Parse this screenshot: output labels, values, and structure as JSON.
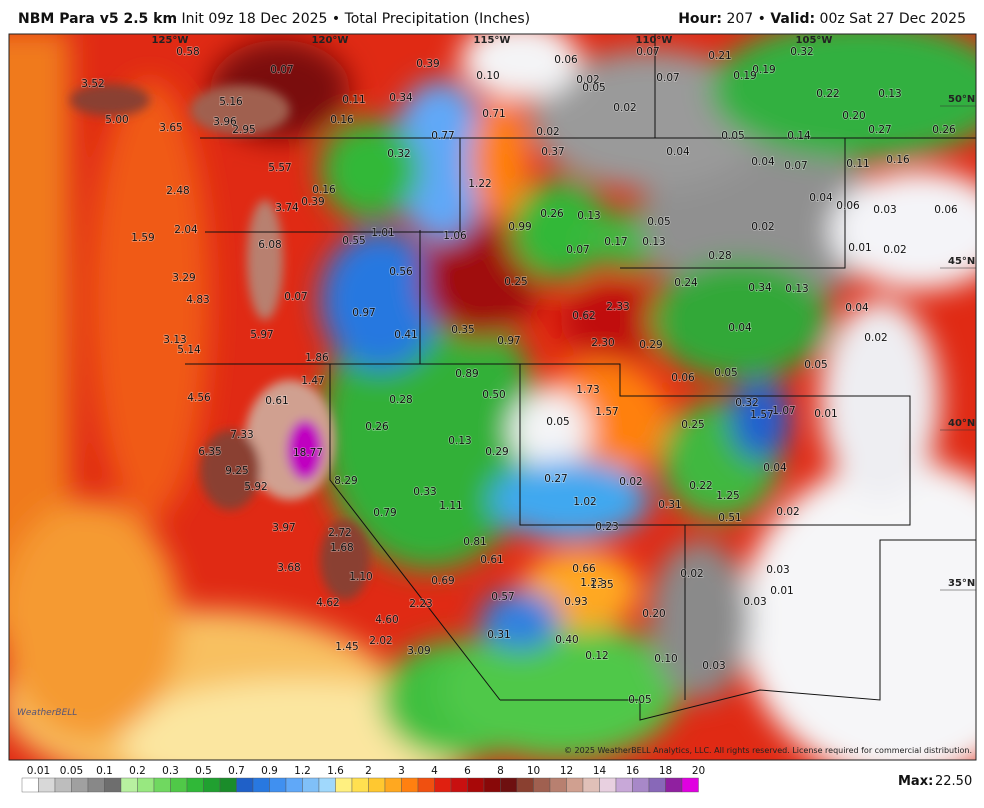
{
  "header": {
    "title": "NBM Para v5 2.5 km",
    "init": "Init 09z 18 Dec 2025",
    "separator": "•",
    "product": "Total Precipitation (Inches)",
    "hour_label": "Hour:",
    "hour": "207",
    "valid_label": "Valid:",
    "valid": "00z Sat 27 Dec 2025"
  },
  "map": {
    "longitudes": [
      "125°W",
      "120°W",
      "115°W",
      "110°W",
      "105°W"
    ],
    "latitudes": [
      "50°N",
      "45°N",
      "40°N",
      "35°N"
    ],
    "point_labels": [
      "0.58",
      "0.07",
      "0.39",
      "0.10",
      "0.06",
      "0.07",
      "0.21",
      "0.32",
      "0.19",
      "0.19",
      "0.02",
      "0.05",
      "0.07",
      "0.22",
      "0.13",
      "3.52",
      "5.16",
      "0.11",
      "0.34",
      "0.71",
      "0.02",
      "0.20",
      "5.00",
      "3.65",
      "3.96",
      "2.95",
      "0.16",
      "0.77",
      "0.02",
      "0.05",
      "0.14",
      "0.27",
      "0.26",
      "0.32",
      "0.37",
      "0.04",
      "0.04",
      "0.07",
      "0.11",
      "0.16",
      "5.57",
      "1.22",
      "2.48",
      "0.16",
      "0.39",
      "3.74",
      "0.04",
      "0.06",
      "0.03",
      "0.06",
      "0.26",
      "0.13",
      "0.05",
      "0.99",
      "0.02",
      "1.59",
      "2.04",
      "1.01",
      "1.06",
      "0.55",
      "0.17",
      "0.13",
      "0.07",
      "0.01",
      "0.02",
      "6.08",
      "0.28",
      "0.56",
      "3.29",
      "0.24",
      "0.34",
      "0.13",
      "0.25",
      "4.83",
      "0.07",
      "2.33",
      "0.04",
      "0.97",
      "0.35",
      "0.04",
      "0.62",
      "5.97",
      "0.41",
      "3.13",
      "0.97",
      "2.30",
      "0.29",
      "0.02",
      "5.14",
      "1.86",
      "0.05",
      "0.89",
      "0.06",
      "0.05",
      "1.47",
      "1.73",
      "4.56",
      "0.61",
      "0.28",
      "0.50",
      "0.32",
      "1.57",
      "1.07",
      "0.01",
      "1.57",
      "7.33",
      "18.77",
      "0.26",
      "0.13",
      "0.05",
      "0.25",
      "6.35",
      "0.29",
      "0.04",
      "9.25",
      "8.29",
      "0.27",
      "0.02",
      "5.92",
      "0.33",
      "0.22",
      "1.11",
      "1.02",
      "1.25",
      "0.31",
      "0.79",
      "0.51",
      "0.02",
      "3.97",
      "2.72",
      "0.23",
      "1.68",
      "0.81",
      "0.61",
      "3.68",
      "0.66",
      "0.02",
      "0.03",
      "1.10",
      "0.69",
      "1.23",
      "1.35",
      "0.01",
      "0.57",
      "0.93",
      "0.03",
      "4.62",
      "2.23",
      "0.20",
      "4.60",
      "0.31",
      "0.40",
      "2.02",
      "1.45",
      "3.09",
      "0.12",
      "0.10",
      "0.03",
      "0.05"
    ],
    "logo": "WeatherBELL",
    "copyright": "© 2025 WeatherBELL Analytics, LLC. All rights reserved. License required for commercial distribution."
  },
  "colorbar": {
    "labels": [
      "0.01",
      "0.05",
      "0.1",
      "0.2",
      "0.3",
      "0.5",
      "0.7",
      "0.9",
      "1.2",
      "1.6",
      "2",
      "3",
      "4",
      "6",
      "8",
      "10",
      "12",
      "14",
      "16",
      "18",
      "20"
    ],
    "colors": [
      "#ffffff",
      "#d8d8d8",
      "#bdbdbd",
      "#a0a0a0",
      "#888888",
      "#6e6e6e",
      "#b8f0a0",
      "#98e880",
      "#70d860",
      "#50c848",
      "#30b838",
      "#20a030",
      "#1a8c2a",
      "#1f60c8",
      "#2878e0",
      "#4090f0",
      "#60a8f8",
      "#80c0f8",
      "#a0d8fc",
      "#fff080",
      "#ffe050",
      "#ffc830",
      "#ffa820",
      "#ff8010",
      "#f05010",
      "#e02010",
      "#c81010",
      "#a80808",
      "#880808",
      "#6e1010",
      "#8a4030",
      "#a06050",
      "#b88070",
      "#d0a090",
      "#e0c0b8",
      "#e8d0e0",
      "#c8a8d8",
      "#a888c8",
      "#8868b8",
      "#9020a0",
      "#e000e0"
    ],
    "max_label": "Max:",
    "max": "22.50"
  }
}
